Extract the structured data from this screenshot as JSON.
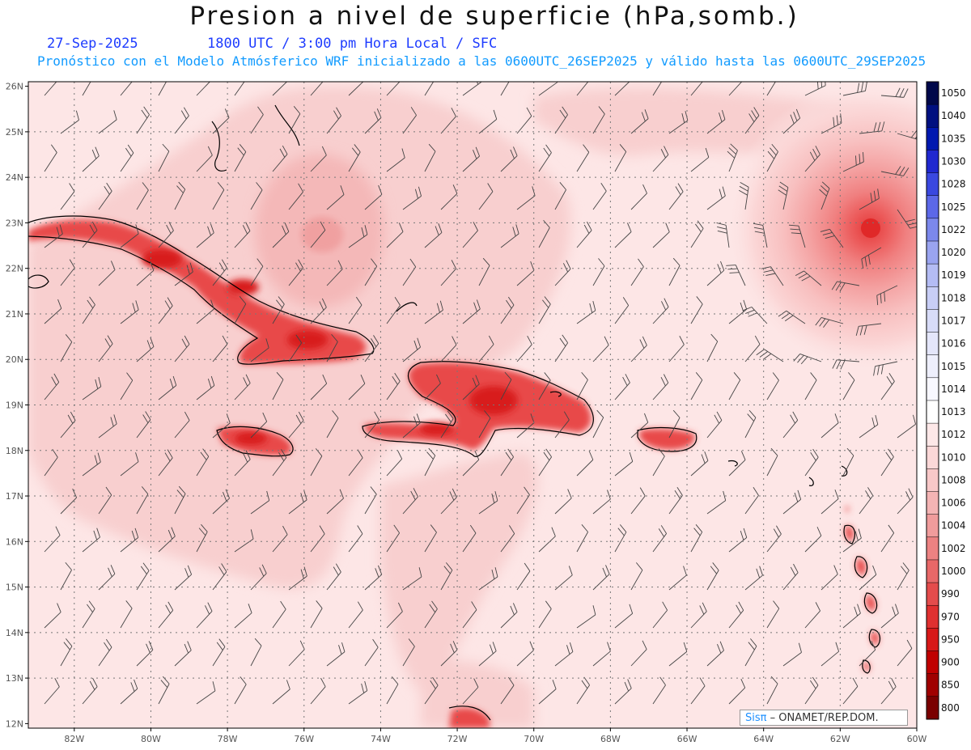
{
  "title": "Presion a nivel de superficie (hPa,somb.)",
  "date": "27-Sep-2025",
  "time": "1800 UTC / 3:00 pm Hora Local / SFC",
  "subtitle": "Pronóstico con el Modelo Atmósferico WRF inicializado a las 0600UTC_26SEP2025 y válido hasta las  0600UTC_29SEP2025",
  "credit": {
    "brand": "Sisπ",
    "org": " ONAMET/REP.DOM."
  },
  "map": {
    "lon_min": -83.2,
    "lon_max": -60,
    "lat_min": 11.9,
    "lat_max": 26.1,
    "lat_ticks": [
      "26N",
      "25N",
      "24N",
      "23N",
      "22N",
      "21N",
      "20N",
      "19N",
      "18N",
      "17N",
      "16N",
      "15N",
      "14N",
      "13N",
      "12N"
    ],
    "lon_ticks": [
      "82W",
      "80W",
      "78W",
      "76W",
      "74W",
      "72W",
      "70W",
      "68W",
      "66W",
      "64W",
      "62W",
      "60W"
    ]
  },
  "colorbar": {
    "levels": [
      "1050",
      "1040",
      "1035",
      "1030",
      "1028",
      "1025",
      "1022",
      "1020",
      "1019",
      "1018",
      "1017",
      "1016",
      "1015",
      "1014",
      "1013",
      "1012",
      "1010",
      "1008",
      "1006",
      "1004",
      "1002",
      "1000",
      "990",
      "970",
      "950",
      "900",
      "850",
      "800"
    ],
    "colors": [
      "#00084a",
      "#001080",
      "#0018b0",
      "#2028d0",
      "#3a48e0",
      "#5c68e8",
      "#7c88ec",
      "#9aa4f0",
      "#b4bcf4",
      "#c8cef6",
      "#d8dcf8",
      "#e4e6fa",
      "#eeeffc",
      "#f8f8ff",
      "#ffffff",
      "#fde8e8",
      "#fbd8d8",
      "#f8c8c8",
      "#f4b4b4",
      "#f09c9c",
      "#ec8282",
      "#e86868",
      "#e44c4c",
      "#e03030",
      "#d81818",
      "#c00000",
      "#a00000",
      "#7a0000"
    ]
  }
}
